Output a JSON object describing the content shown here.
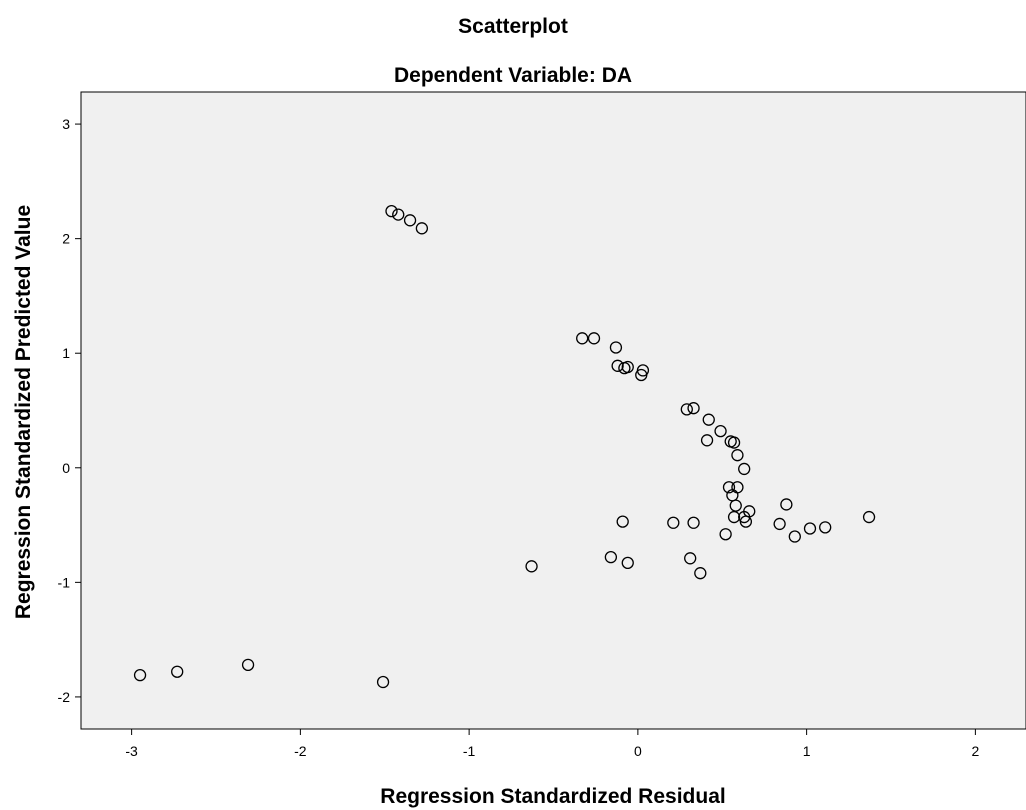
{
  "chart_data": {
    "type": "scatter",
    "title": "Scatterplot",
    "subtitle": "Dependent Variable: DA",
    "xlabel": "Regression Standardized Residual",
    "ylabel": "Regression Standardized Predicted Value",
    "xlim": [
      -3.3,
      2.3
    ],
    "ylim": [
      -2.28,
      3.28
    ],
    "xticks": [
      -3,
      -2,
      -1,
      0,
      1,
      2
    ],
    "yticks": [
      -2,
      -1,
      0,
      1,
      2,
      3
    ],
    "xtick_labels": [
      "-3",
      "-2",
      "-1",
      "0",
      "1",
      "2"
    ],
    "ytick_labels": [
      "-2",
      "-1",
      "0",
      "1",
      "2",
      "3"
    ],
    "grid": false,
    "plot_background": "#f0f0f0",
    "marker": "open-circle",
    "points": [
      {
        "x": -1.46,
        "y": 2.24
      },
      {
        "x": -1.42,
        "y": 2.21
      },
      {
        "x": -1.35,
        "y": 2.16
      },
      {
        "x": -1.28,
        "y": 2.09
      },
      {
        "x": -0.33,
        "y": 1.13
      },
      {
        "x": -0.26,
        "y": 1.13
      },
      {
        "x": -0.13,
        "y": 1.05
      },
      {
        "x": -0.12,
        "y": 0.89
      },
      {
        "x": -0.08,
        "y": 0.87
      },
      {
        "x": -0.06,
        "y": 0.88
      },
      {
        "x": 0.02,
        "y": 0.81
      },
      {
        "x": 0.03,
        "y": 0.85
      },
      {
        "x": 0.29,
        "y": 0.51
      },
      {
        "x": 0.33,
        "y": 0.52
      },
      {
        "x": 0.42,
        "y": 0.42
      },
      {
        "x": 0.49,
        "y": 0.32
      },
      {
        "x": 0.41,
        "y": 0.24
      },
      {
        "x": 0.55,
        "y": 0.23
      },
      {
        "x": 0.57,
        "y": 0.22
      },
      {
        "x": 0.59,
        "y": 0.11
      },
      {
        "x": 0.63,
        "y": -0.01
      },
      {
        "x": 0.54,
        "y": -0.17
      },
      {
        "x": 0.59,
        "y": -0.17
      },
      {
        "x": 0.56,
        "y": -0.24
      },
      {
        "x": 0.58,
        "y": -0.33
      },
      {
        "x": 0.88,
        "y": -0.32
      },
      {
        "x": 0.66,
        "y": -0.38
      },
      {
        "x": 0.57,
        "y": -0.43
      },
      {
        "x": 0.63,
        "y": -0.43
      },
      {
        "x": 0.64,
        "y": -0.47
      },
      {
        "x": 1.37,
        "y": -0.43
      },
      {
        "x": -0.09,
        "y": -0.47
      },
      {
        "x": 0.21,
        "y": -0.48
      },
      {
        "x": 0.33,
        "y": -0.48
      },
      {
        "x": 0.84,
        "y": -0.49
      },
      {
        "x": 1.02,
        "y": -0.53
      },
      {
        "x": 1.11,
        "y": -0.52
      },
      {
        "x": 0.52,
        "y": -0.58
      },
      {
        "x": 0.93,
        "y": -0.6
      },
      {
        "x": -0.63,
        "y": -0.86
      },
      {
        "x": -0.16,
        "y": -0.78
      },
      {
        "x": -0.06,
        "y": -0.83
      },
      {
        "x": 0.31,
        "y": -0.79
      },
      {
        "x": 0.37,
        "y": -0.92
      },
      {
        "x": -2.95,
        "y": -1.81
      },
      {
        "x": -2.73,
        "y": -1.78
      },
      {
        "x": -2.31,
        "y": -1.72
      },
      {
        "x": -1.51,
        "y": -1.87
      }
    ]
  }
}
